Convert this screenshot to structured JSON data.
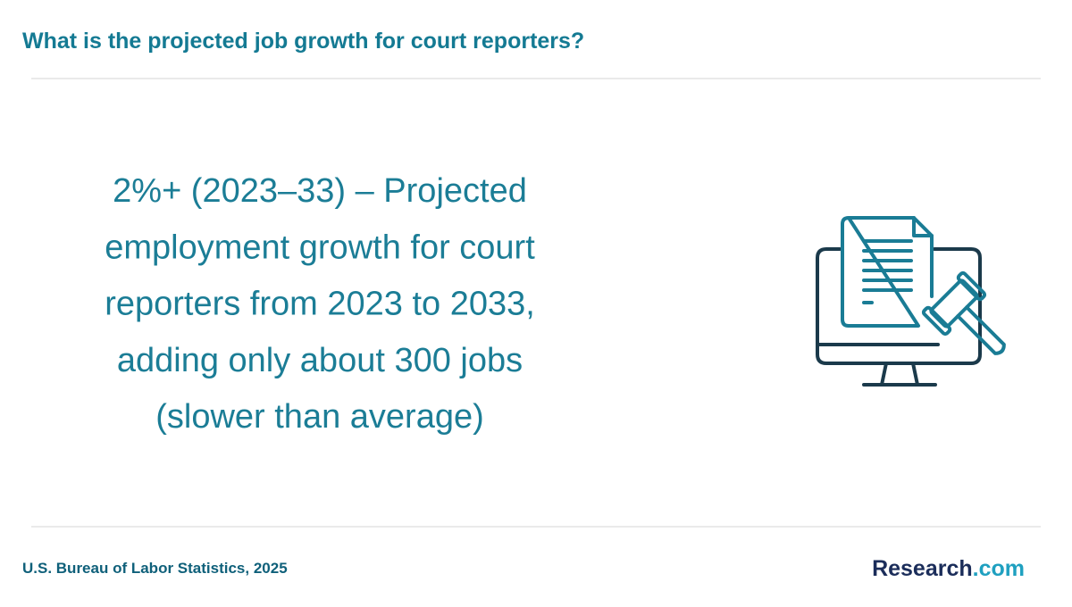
{
  "header": {
    "title": "What is the projected job growth for court reporters?"
  },
  "statement": {
    "lines": [
      "2%+ (2023–33) – Projected",
      "employment growth for court",
      "reporters from 2023 to 2033,",
      "adding only about 300 jobs",
      "(slower than average)"
    ]
  },
  "footer": {
    "source": "U.S. Bureau of Labor Statistics, 2025",
    "logo": {
      "name": "Research",
      "domain": ".com"
    }
  }
}
